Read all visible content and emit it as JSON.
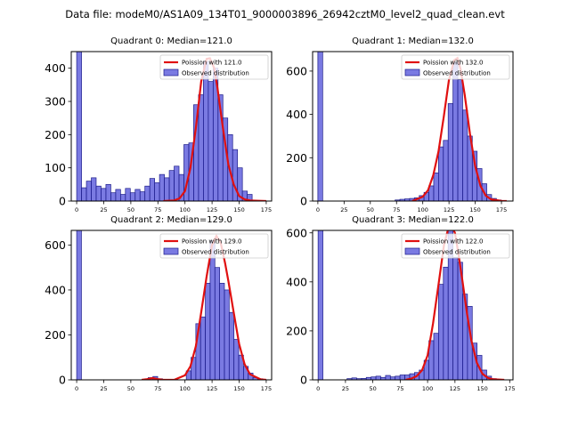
{
  "suptitle": "Data file: modeM0/AS1A09_134T01_9000003896_26942cztM0_level2_quad_clean.evt",
  "chart_data": [
    {
      "type": "bar",
      "title": "Quadrant 0: Median=121.0",
      "legend": [
        "Poission with 121.0",
        "Observed distribution"
      ],
      "legend_position": "top-right",
      "median": 121.0,
      "xlim": [
        -5,
        180
      ],
      "ylim": [
        0,
        450
      ],
      "xticks": [
        0,
        25,
        50,
        75,
        100,
        125,
        150,
        175
      ],
      "yticks": [
        0,
        100,
        200,
        300,
        400
      ],
      "bin_width": 4.5,
      "bins": [
        [
          0,
          450
        ],
        [
          4.5,
          40
        ],
        [
          9,
          60
        ],
        [
          13.5,
          70
        ],
        [
          18,
          45
        ],
        [
          22.5,
          38
        ],
        [
          27,
          50
        ],
        [
          31.5,
          25
        ],
        [
          36,
          35
        ],
        [
          40.5,
          20
        ],
        [
          45,
          38
        ],
        [
          49.5,
          25
        ],
        [
          54,
          35
        ],
        [
          58.5,
          28
        ],
        [
          63,
          45
        ],
        [
          67.5,
          68
        ],
        [
          72,
          55
        ],
        [
          76.5,
          80
        ],
        [
          81,
          70
        ],
        [
          85.5,
          92
        ],
        [
          90,
          105
        ],
        [
          94.5,
          80
        ],
        [
          99,
          170
        ],
        [
          103.5,
          175
        ],
        [
          108,
          290
        ],
        [
          112.5,
          320
        ],
        [
          117,
          420
        ],
        [
          121.5,
          360
        ],
        [
          126,
          400
        ],
        [
          130.5,
          320
        ],
        [
          135,
          250
        ],
        [
          139.5,
          200
        ],
        [
          144,
          155
        ],
        [
          148.5,
          100
        ],
        [
          153,
          30
        ],
        [
          157.5,
          20
        ]
      ],
      "curve": {
        "x": [
          80,
          90,
          95,
          100,
          105,
          110,
          115,
          120,
          123,
          127,
          130,
          135,
          140,
          145,
          150,
          155,
          160,
          165,
          175
        ],
        "y": [
          0,
          2,
          8,
          30,
          100,
          220,
          360,
          428,
          430,
          400,
          340,
          220,
          110,
          50,
          15,
          5,
          2,
          1,
          0
        ]
      }
    },
    {
      "type": "bar",
      "title": "Quadrant 1: Median=132.0",
      "legend": [
        "Poission with 132.0",
        "Observed distribution"
      ],
      "legend_position": "top-right",
      "median": 132.0,
      "xlim": [
        -5,
        186
      ],
      "ylim": [
        0,
        690
      ],
      "xticks": [
        0,
        25,
        50,
        75,
        100,
        125,
        150,
        175
      ],
      "yticks": [
        0,
        200,
        400,
        600
      ],
      "bin_width": 4.6,
      "bins": [
        [
          0,
          690
        ],
        [
          73.6,
          5
        ],
        [
          78.2,
          8
        ],
        [
          82.8,
          10
        ],
        [
          87.4,
          12
        ],
        [
          92,
          15
        ],
        [
          96.6,
          25
        ],
        [
          101.2,
          40
        ],
        [
          105.8,
          70
        ],
        [
          110.4,
          130
        ],
        [
          115,
          250
        ],
        [
          119.6,
          280
        ],
        [
          124.2,
          450
        ],
        [
          128.8,
          640
        ],
        [
          133.4,
          560
        ],
        [
          138,
          420
        ],
        [
          142.6,
          300
        ],
        [
          147.2,
          230
        ],
        [
          151.8,
          150
        ],
        [
          156.4,
          80
        ],
        [
          161,
          30
        ],
        [
          165.6,
          12
        ],
        [
          170.2,
          5
        ]
      ],
      "curve": {
        "x": [
          90,
          100,
          105,
          110,
          115,
          120,
          125,
          130,
          133,
          136,
          140,
          145,
          150,
          155,
          160,
          165,
          175,
          180
        ],
        "y": [
          0,
          20,
          50,
          120,
          230,
          390,
          560,
          650,
          660,
          610,
          490,
          310,
          160,
          70,
          25,
          8,
          1,
          0
        ]
      }
    },
    {
      "type": "bar",
      "title": "Quadrant 2: Median=129.0",
      "legend": [
        "Poission with 129.0",
        "Observed distribution"
      ],
      "legend_position": "top-right",
      "median": 129.0,
      "xlim": [
        -5,
        180
      ],
      "ylim": [
        0,
        665
      ],
      "xticks": [
        0,
        25,
        50,
        75,
        100,
        125,
        150,
        175
      ],
      "yticks": [
        0,
        200,
        400,
        600
      ],
      "bin_width": 4.4,
      "bins": [
        [
          0,
          665
        ],
        [
          66,
          10
        ],
        [
          70.4,
          15
        ],
        [
          74.8,
          5
        ],
        [
          101.2,
          40
        ],
        [
          105.6,
          100
        ],
        [
          110,
          250
        ],
        [
          114.4,
          280
        ],
        [
          118.8,
          430
        ],
        [
          123.2,
          620
        ],
        [
          127.6,
          500
        ],
        [
          132,
          430
        ],
        [
          136.4,
          400
        ],
        [
          140.8,
          300
        ],
        [
          145.2,
          180
        ],
        [
          149.6,
          110
        ],
        [
          154,
          60
        ],
        [
          158.4,
          30
        ],
        [
          162.8,
          10
        ],
        [
          167.2,
          5
        ]
      ],
      "curve": {
        "x": [
          60,
          65,
          70,
          75,
          80,
          90,
          100,
          105,
          110,
          115,
          120,
          125,
          129,
          133,
          137,
          140,
          145,
          150,
          155,
          160,
          170,
          175
        ],
        "y": [
          0,
          3,
          8,
          3,
          0,
          0,
          20,
          60,
          150,
          300,
          460,
          600,
          640,
          610,
          520,
          440,
          300,
          160,
          70,
          25,
          2,
          0
        ]
      }
    },
    {
      "type": "bar",
      "title": "Quadrant 3: Median=122.0",
      "legend": [
        "Poission with 122.0",
        "Observed distribution"
      ],
      "legend_position": "top-right",
      "median": 122.0,
      "xlim": [
        -5,
        178
      ],
      "ylim": [
        0,
        610
      ],
      "xticks": [
        0,
        25,
        50,
        75,
        100,
        125,
        150,
        175
      ],
      "yticks": [
        0,
        200,
        400,
        600
      ],
      "bin_width": 4.4,
      "bins": [
        [
          0,
          610
        ],
        [
          26.4,
          5
        ],
        [
          30.8,
          8
        ],
        [
          35.2,
          5
        ],
        [
          39.6,
          6
        ],
        [
          44,
          10
        ],
        [
          48.4,
          12
        ],
        [
          52.8,
          15
        ],
        [
          57.2,
          10
        ],
        [
          61.6,
          18
        ],
        [
          66,
          12
        ],
        [
          70.4,
          15
        ],
        [
          74.8,
          20
        ],
        [
          79.2,
          20
        ],
        [
          83.6,
          25
        ],
        [
          88,
          30
        ],
        [
          92.4,
          40
        ],
        [
          96.8,
          80
        ],
        [
          101.2,
          160
        ],
        [
          105.6,
          190
        ],
        [
          110,
          390
        ],
        [
          114.4,
          460
        ],
        [
          118.8,
          630
        ],
        [
          123.2,
          500
        ],
        [
          127.6,
          480
        ],
        [
          132,
          350
        ],
        [
          136.4,
          300
        ],
        [
          140.8,
          150
        ],
        [
          145.2,
          100
        ],
        [
          149.6,
          40
        ],
        [
          154,
          15
        ],
        [
          158.4,
          5
        ]
      ],
      "curve": {
        "x": [
          80,
          85,
          90,
          95,
          100,
          105,
          110,
          115,
          119,
          122,
          125,
          128,
          132,
          136,
          140,
          145,
          150,
          155,
          160,
          170
        ],
        "y": [
          0,
          5,
          15,
          40,
          100,
          230,
          390,
          550,
          620,
          630,
          600,
          520,
          400,
          270,
          160,
          70,
          25,
          8,
          2,
          0
        ]
      }
    }
  ]
}
